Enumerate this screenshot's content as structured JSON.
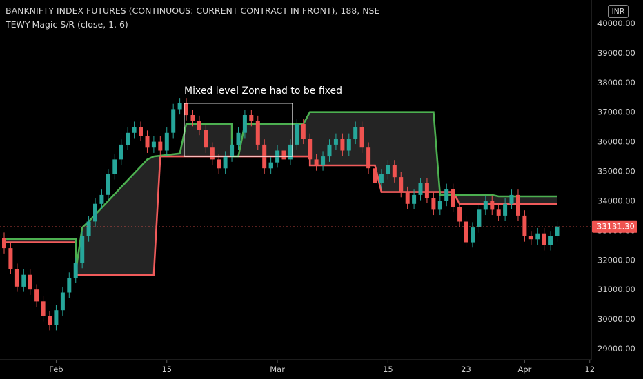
{
  "header": {
    "title": "BANKNIFTY INDEX FUTURES (CONTINUOUS: CURRENT CONTRACT IN FRONT), 188, NSE",
    "indicator": "TEWY-Magic S/R (close, 1, 6)",
    "currency": "INR"
  },
  "colors": {
    "up": "#26a69a",
    "down": "#ef5350",
    "support": "#f05b5b",
    "resistance": "#4caf50",
    "cloud_fill": "#2a2a2a",
    "annotation_box": "#ffffff",
    "axis_text": "#cfcfcf"
  },
  "chart_data": {
    "type": "candlestick",
    "x_ticks": [
      "Feb",
      "15",
      "Mar",
      "15",
      "23",
      "Apr",
      "12"
    ],
    "y_ticks": [
      "40000.00",
      "39000.00",
      "38000.00",
      "37000.00",
      "36000.00",
      "35000.00",
      "34000.00",
      "33000.00",
      "32000.00",
      "31000.00",
      "30000.00",
      "29000.00"
    ],
    "ylim": [
      28800,
      40300
    ],
    "last_price": 33131.3,
    "last_price_label": "33131.30",
    "annotation": {
      "text": "Mixed level Zone had to be fixed",
      "price_top": 37300,
      "price_bottom": 35500,
      "from_bar": 28,
      "to_bar": 44
    },
    "candles": [
      [
        32750,
        32400
      ],
      [
        32400,
        31700
      ],
      [
        31700,
        31100
      ],
      [
        31100,
        31500
      ],
      [
        31500,
        31000
      ],
      [
        31000,
        30600
      ],
      [
        30600,
        30100
      ],
      [
        30100,
        29800
      ],
      [
        29800,
        30300
      ],
      [
        30300,
        30900
      ],
      [
        30900,
        31400
      ],
      [
        31400,
        31900
      ],
      [
        31900,
        32800
      ],
      [
        32800,
        33300
      ],
      [
        33300,
        33900
      ],
      [
        33900,
        34200
      ],
      [
        34200,
        34900
      ],
      [
        34900,
        35400
      ],
      [
        35400,
        35900
      ],
      [
        35900,
        36300
      ],
      [
        36300,
        36500
      ],
      [
        36500,
        36200
      ],
      [
        36200,
        35800
      ],
      [
        35800,
        36000
      ],
      [
        36000,
        35700
      ],
      [
        35700,
        36300
      ],
      [
        36300,
        37100
      ],
      [
        37100,
        37300
      ],
      [
        37300,
        36900
      ],
      [
        36900,
        36700
      ],
      [
        36700,
        36400
      ],
      [
        36400,
        35800
      ],
      [
        35800,
        35400
      ],
      [
        35400,
        35100
      ],
      [
        35100,
        35500
      ],
      [
        35500,
        35900
      ],
      [
        35900,
        36300
      ],
      [
        36300,
        36900
      ],
      [
        36900,
        36700
      ],
      [
        36700,
        35900
      ],
      [
        35900,
        35100
      ],
      [
        35100,
        35300
      ],
      [
        35300,
        35700
      ],
      [
        35700,
        35400
      ],
      [
        35400,
        35900
      ],
      [
        35900,
        36600
      ],
      [
        36600,
        36100
      ],
      [
        36100,
        35400
      ],
      [
        35400,
        35200
      ],
      [
        35200,
        35500
      ],
      [
        35500,
        35900
      ],
      [
        35900,
        36100
      ],
      [
        36100,
        35700
      ],
      [
        35700,
        36100
      ],
      [
        36100,
        36500
      ],
      [
        36500,
        35800
      ],
      [
        35800,
        35100
      ],
      [
        35100,
        34600
      ],
      [
        34600,
        34900
      ],
      [
        34900,
        35200
      ],
      [
        35200,
        34800
      ],
      [
        34800,
        34300
      ],
      [
        34300,
        33900
      ],
      [
        33900,
        34200
      ],
      [
        34200,
        34600
      ],
      [
        34600,
        34100
      ],
      [
        34100,
        33700
      ],
      [
        33700,
        34000
      ],
      [
        34000,
        34400
      ],
      [
        34400,
        33800
      ],
      [
        33800,
        33300
      ],
      [
        33300,
        32600
      ],
      [
        32600,
        33100
      ],
      [
        33100,
        33700
      ],
      [
        33700,
        34000
      ],
      [
        34000,
        33700
      ],
      [
        33700,
        33500
      ],
      [
        33500,
        33900
      ],
      [
        33900,
        34200
      ],
      [
        34200,
        33500
      ],
      [
        33500,
        32800
      ],
      [
        32800,
        32700
      ],
      [
        32700,
        32900
      ],
      [
        32900,
        32500
      ],
      [
        32500,
        32800
      ],
      [
        32800,
        33131
      ]
    ],
    "support_line": [
      [
        0,
        32600
      ],
      [
        11,
        32600
      ],
      [
        11,
        31500
      ],
      [
        23,
        31500
      ],
      [
        24,
        35500
      ],
      [
        47,
        35500
      ],
      [
        47,
        35200
      ],
      [
        57,
        35200
      ],
      [
        58,
        34300
      ],
      [
        69,
        34300
      ],
      [
        70,
        33900
      ],
      [
        85,
        33900
      ]
    ],
    "resistance_line": [
      [
        0,
        32700
      ],
      [
        11,
        32700
      ],
      [
        11,
        31600
      ],
      [
        12,
        33100
      ],
      [
        13,
        33300
      ],
      [
        22,
        35400
      ],
      [
        23,
        35500
      ],
      [
        27,
        35600
      ],
      [
        28,
        36600
      ],
      [
        35,
        36600
      ],
      [
        35,
        35500
      ],
      [
        36,
        35500
      ],
      [
        37,
        36600
      ],
      [
        46,
        36600
      ],
      [
        47,
        37000
      ],
      [
        66,
        37000
      ],
      [
        67,
        34200
      ],
      [
        75,
        34200
      ],
      [
        76,
        34150
      ],
      [
        85,
        34150
      ]
    ]
  }
}
